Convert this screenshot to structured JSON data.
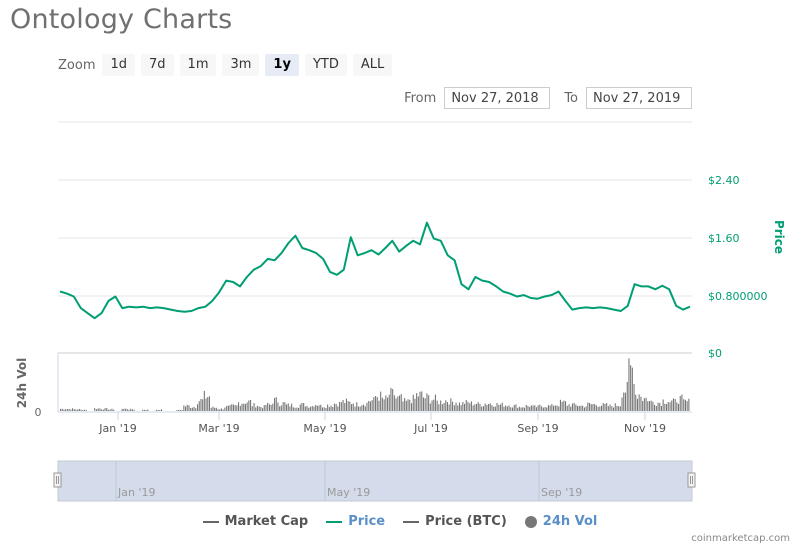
{
  "page": {
    "title": "Ontology Charts"
  },
  "zoom": {
    "label": "Zoom",
    "buttons": [
      {
        "label": "1d",
        "active": false
      },
      {
        "label": "7d",
        "active": false
      },
      {
        "label": "1m",
        "active": false
      },
      {
        "label": "3m",
        "active": false
      },
      {
        "label": "1y",
        "active": true
      },
      {
        "label": "YTD",
        "active": false
      },
      {
        "label": "ALL",
        "active": false
      }
    ]
  },
  "range": {
    "from_label": "From",
    "from_value": "Nov 27, 2018",
    "to_label": "To",
    "to_value": "Nov 27, 2019"
  },
  "colors": {
    "price": "#009e73",
    "volume": "#777777",
    "market_cap": "#666666",
    "price_btc": "#666666",
    "navigator_fill": "#d4dcec",
    "grid": "#e6e6e6",
    "axis_label": "#009e73",
    "legend_active": "#5b8fc7"
  },
  "axes": {
    "price_title": "Price",
    "price_ticks": [
      "$0",
      "$0.800000",
      "$1.60",
      "$2.40"
    ],
    "volume_title": "24h Vol",
    "volume_ticks": [
      "0"
    ],
    "x_ticks": [
      "Jan '19",
      "Mar '19",
      "May '19",
      "Jul '19",
      "Sep '19",
      "Nov '19"
    ],
    "navigator_ticks": [
      "Jan '19",
      "May '19",
      "Sep '19"
    ]
  },
  "legend": [
    {
      "label": "Market Cap",
      "symbol": "line",
      "color": "#666666",
      "text_color": "#555555"
    },
    {
      "label": "Price",
      "symbol": "line",
      "color": "#009e73",
      "text_color": "#5b8fc7"
    },
    {
      "label": "Price (BTC)",
      "symbol": "line",
      "color": "#666666",
      "text_color": "#555555"
    },
    {
      "label": "24h Vol",
      "symbol": "dot",
      "color": "#777777",
      "text_color": "#5b8fc7"
    }
  ],
  "credits": "coinmarketcap.com",
  "chart_data": {
    "type": "line",
    "title": "Ontology Charts",
    "xlabel": "",
    "ylabel": "Price",
    "ylim": [
      0,
      2.8
    ],
    "grid": true,
    "legend_position": "bottom",
    "x_range": [
      "Nov 27, 2018",
      "Nov 27, 2019"
    ],
    "x_tick_labels": [
      "Jan '19",
      "Mar '19",
      "May '19",
      "Jul '19",
      "Sep '19",
      "Nov '19"
    ],
    "y_tick_labels": [
      "$0",
      "$0.800000",
      "$1.60",
      "$2.40"
    ],
    "series": [
      {
        "name": "Price",
        "unit": "USD",
        "x": [
          "2018-11-27",
          "2018-12-01",
          "2018-12-05",
          "2018-12-09",
          "2018-12-13",
          "2018-12-17",
          "2018-12-21",
          "2018-12-25",
          "2018-12-29",
          "2019-01-02",
          "2019-01-06",
          "2019-01-10",
          "2019-01-14",
          "2019-01-18",
          "2019-01-22",
          "2019-01-26",
          "2019-01-30",
          "2019-02-03",
          "2019-02-07",
          "2019-02-11",
          "2019-02-15",
          "2019-02-19",
          "2019-02-23",
          "2019-02-27",
          "2019-03-03",
          "2019-03-07",
          "2019-03-11",
          "2019-03-15",
          "2019-03-19",
          "2019-03-23",
          "2019-03-27",
          "2019-03-31",
          "2019-04-04",
          "2019-04-08",
          "2019-04-12",
          "2019-04-16",
          "2019-04-20",
          "2019-04-24",
          "2019-04-28",
          "2019-05-02",
          "2019-05-06",
          "2019-05-10",
          "2019-05-14",
          "2019-05-18",
          "2019-05-22",
          "2019-05-26",
          "2019-05-30",
          "2019-06-03",
          "2019-06-07",
          "2019-06-11",
          "2019-06-15",
          "2019-06-19",
          "2019-06-23",
          "2019-06-27",
          "2019-07-01",
          "2019-07-05",
          "2019-07-09",
          "2019-07-13",
          "2019-07-17",
          "2019-07-21",
          "2019-07-25",
          "2019-07-29",
          "2019-08-02",
          "2019-08-06",
          "2019-08-10",
          "2019-08-14",
          "2019-08-18",
          "2019-08-22",
          "2019-08-26",
          "2019-08-30",
          "2019-09-03",
          "2019-09-07",
          "2019-09-11",
          "2019-09-15",
          "2019-09-19",
          "2019-09-23",
          "2019-09-27",
          "2019-10-01",
          "2019-10-05",
          "2019-10-09",
          "2019-10-13",
          "2019-10-17",
          "2019-10-21",
          "2019-10-25",
          "2019-10-29",
          "2019-11-02",
          "2019-11-06",
          "2019-11-10",
          "2019-11-14",
          "2019-11-18",
          "2019-11-22",
          "2019-11-27"
        ],
        "values": [
          0.85,
          0.82,
          0.78,
          0.62,
          0.55,
          0.48,
          0.55,
          0.72,
          0.78,
          0.62,
          0.64,
          0.63,
          0.64,
          0.62,
          0.63,
          0.62,
          0.6,
          0.58,
          0.57,
          0.58,
          0.62,
          0.64,
          0.72,
          0.84,
          1.0,
          0.98,
          0.92,
          1.05,
          1.15,
          1.2,
          1.3,
          1.28,
          1.38,
          1.52,
          1.62,
          1.45,
          1.42,
          1.38,
          1.3,
          1.12,
          1.08,
          1.15,
          1.6,
          1.35,
          1.38,
          1.42,
          1.36,
          1.45,
          1.55,
          1.4,
          1.48,
          1.55,
          1.5,
          1.8,
          1.58,
          1.55,
          1.35,
          1.28,
          0.95,
          0.88,
          1.05,
          1.0,
          0.98,
          0.92,
          0.85,
          0.82,
          0.78,
          0.8,
          0.76,
          0.75,
          0.78,
          0.8,
          0.85,
          0.72,
          0.6,
          0.62,
          0.63,
          0.62,
          0.63,
          0.62,
          0.6,
          0.58,
          0.65,
          0.95,
          0.92,
          0.92,
          0.88,
          0.93,
          0.88,
          0.65,
          0.6,
          0.64
        ]
      },
      {
        "name": "24h Vol",
        "unit": "relative",
        "values": [
          0.05,
          0.05,
          0.04,
          0.03,
          0.0,
          0.06,
          0.05,
          0.04,
          0.0,
          0.05,
          0.04,
          0.0,
          0.03,
          0.0,
          0.03,
          0.0,
          0.0,
          0.02,
          0.12,
          0.1,
          0.25,
          0.35,
          0.08,
          0.05,
          0.1,
          0.12,
          0.2,
          0.22,
          0.14,
          0.1,
          0.15,
          0.25,
          0.18,
          0.14,
          0.12,
          0.15,
          0.12,
          0.16,
          0.12,
          0.14,
          0.18,
          0.22,
          0.2,
          0.16,
          0.18,
          0.25,
          0.35,
          0.28,
          0.4,
          0.3,
          0.22,
          0.28,
          0.38,
          0.32,
          0.28,
          0.22,
          0.25,
          0.22,
          0.18,
          0.2,
          0.18,
          0.16,
          0.18,
          0.16,
          0.15,
          0.14,
          0.12,
          0.1,
          0.12,
          0.1,
          0.12,
          0.12,
          0.15,
          0.2,
          0.15,
          0.14,
          0.12,
          0.16,
          0.15,
          0.14,
          0.12,
          0.14,
          0.5,
          1.0,
          0.4,
          0.3,
          0.22,
          0.2,
          0.25,
          0.22,
          0.28,
          0.22
        ]
      }
    ]
  }
}
